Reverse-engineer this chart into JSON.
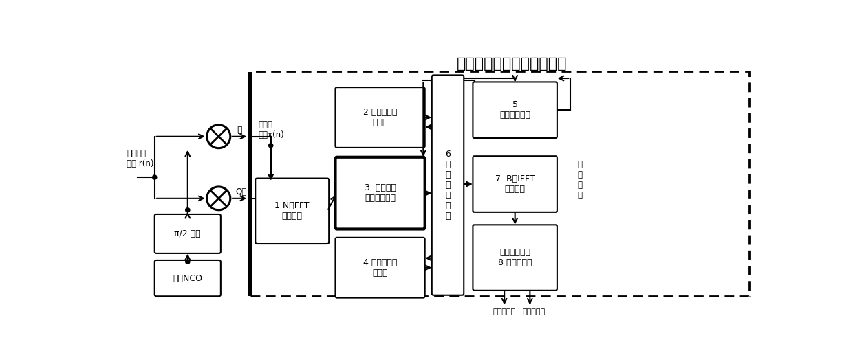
{
  "title": "扩频信号伪码快速捕获装置",
  "title_fontsize": 16,
  "figsize": [
    12.4,
    5.14
  ],
  "dpi": 100,
  "bg": "#ffffff",
  "input_label": "中频信号\n采样 r(n)",
  "baseband_label": "复基带\n信号x(n)",
  "I_label": "I路",
  "Q_label": "Q路",
  "ps_label": "π/2 移相",
  "nco_label": "载波NCO",
  "fft_label": "1 N点FFT\n计算单元",
  "b2_label": "2 伪码频谱存\n储单元",
  "b3_label": "3  乒乓结构\n数据缓存单元",
  "b4_label": "4 加权系数存\n储单元",
  "b5_label": "5\n数据读取单元",
  "b6_label": "6\n数\n据\n处\n理\n单\n元",
  "b7_label": "7  B点IFFT\n计算单元",
  "b8_label": "码相位与多普\n8 勒估计单元",
  "iter_label": "迭\n代\n计\n算",
  "out1_label": "码相位估计",
  "out2_label": "多普勒估计"
}
